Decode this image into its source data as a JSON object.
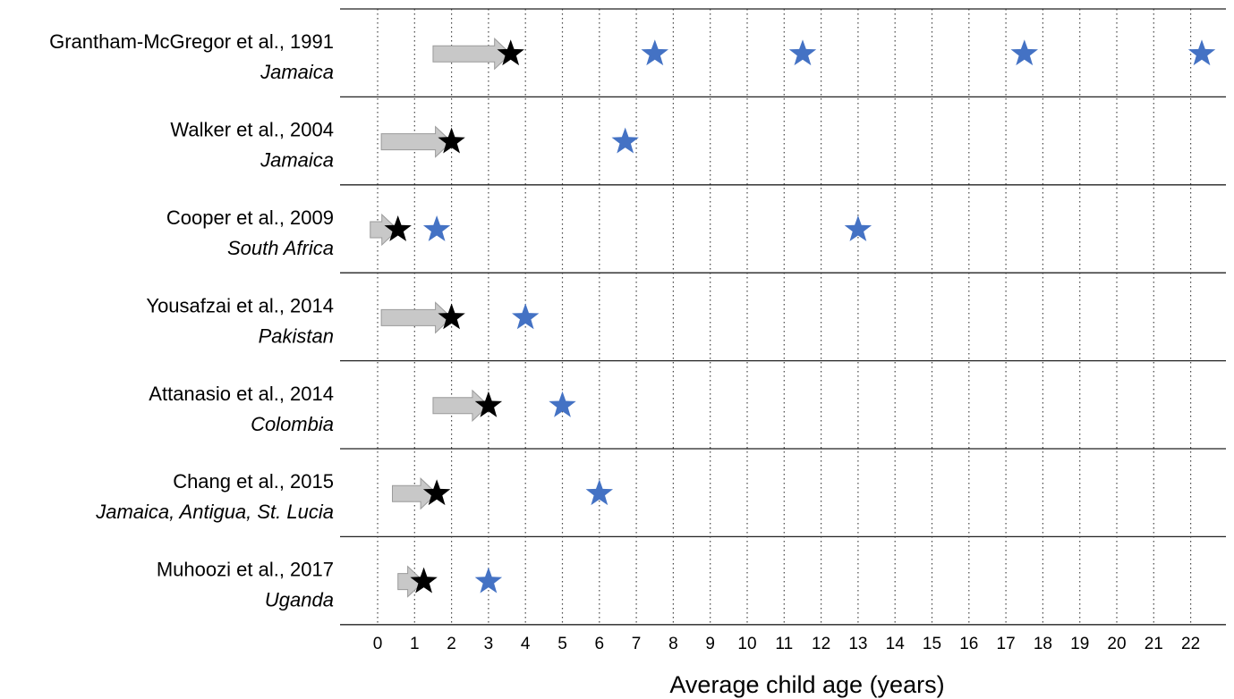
{
  "chart_data": {
    "type": "scatter",
    "title": "",
    "xlabel": "Average child age (years)",
    "ylabel": "",
    "xlim": [
      -1,
      22.5
    ],
    "x_ticks": [
      0,
      1,
      2,
      3,
      4,
      5,
      6,
      7,
      8,
      9,
      10,
      11,
      12,
      13,
      14,
      15,
      16,
      17,
      18,
      19,
      20,
      21,
      22
    ],
    "grid": "vertical dotted lines at each year",
    "colors": {
      "intervention_arrow": "#c8c8c8",
      "end_of_intervention_star": "#000000",
      "follow_up_star": "#4472c4"
    },
    "studies": [
      {
        "name": "Grantham-McGregor et al., 1991",
        "country": "Jamaica",
        "intervention_start": 1.5,
        "intervention_end": 3.6,
        "follow_ups": [
          7.5,
          11.5,
          17.5,
          22.3
        ]
      },
      {
        "name": "Walker et al., 2004",
        "country": "Jamaica",
        "intervention_start": 0.1,
        "intervention_end": 2.0,
        "follow_ups": [
          6.7
        ]
      },
      {
        "name": "Cooper et al., 2009",
        "country": "South Africa",
        "intervention_start": -0.2,
        "intervention_end": 0.55,
        "follow_ups": [
          1.6,
          13.0
        ]
      },
      {
        "name": "Yousafzai et al., 2014",
        "country": "Pakistan",
        "intervention_start": 0.1,
        "intervention_end": 2.0,
        "follow_ups": [
          4.0
        ]
      },
      {
        "name": "Attanasio et al., 2014",
        "country": "Colombia",
        "intervention_start": 1.5,
        "intervention_end": 3.0,
        "follow_ups": [
          5.0
        ]
      },
      {
        "name": "Chang et al., 2015",
        "country": "Jamaica, Antigua, St. Lucia",
        "intervention_start": 0.4,
        "intervention_end": 1.6,
        "follow_ups": [
          6.0
        ]
      },
      {
        "name": "Muhoozi et al., 2017",
        "country": "Uganda",
        "intervention_start": 0.55,
        "intervention_end": 1.25,
        "follow_ups": [
          3.0
        ]
      }
    ]
  }
}
